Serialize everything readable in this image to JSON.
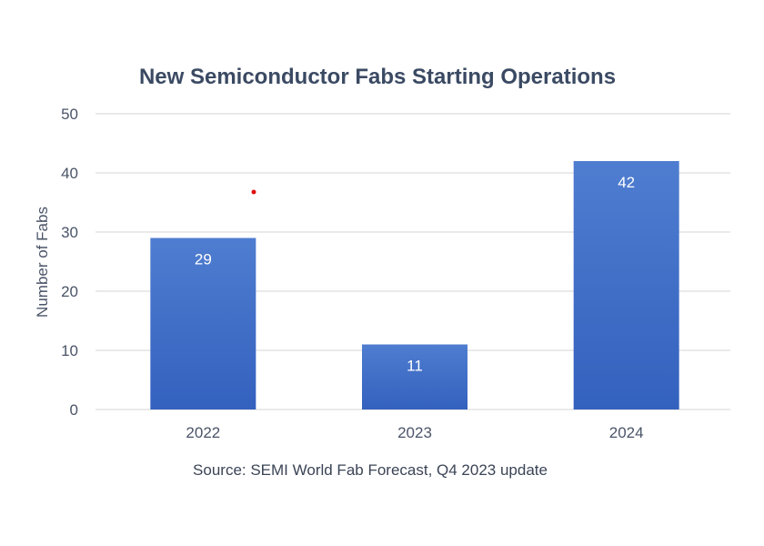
{
  "chart_data": {
    "type": "bar",
    "title": "New Semiconductor Fabs Starting Operations",
    "ylabel": "Number of Fabs",
    "xlabel": "",
    "categories": [
      "2022",
      "2023",
      "2024"
    ],
    "values": [
      29,
      11,
      42
    ],
    "data_labels": [
      "29",
      "11",
      "42"
    ],
    "ylim": [
      0,
      50
    ],
    "yticks": [
      "0",
      "10",
      "20",
      "30",
      "40",
      "50"
    ],
    "grid": true,
    "legend": "none",
    "source": "Source: SEMI World Fab Forecast, Q4 2023 update",
    "colors": {
      "bar_top": "#4f7dd0",
      "bar_bottom": "#3361be",
      "grid": "#e3e3e3",
      "title": "#3b4a63"
    }
  }
}
